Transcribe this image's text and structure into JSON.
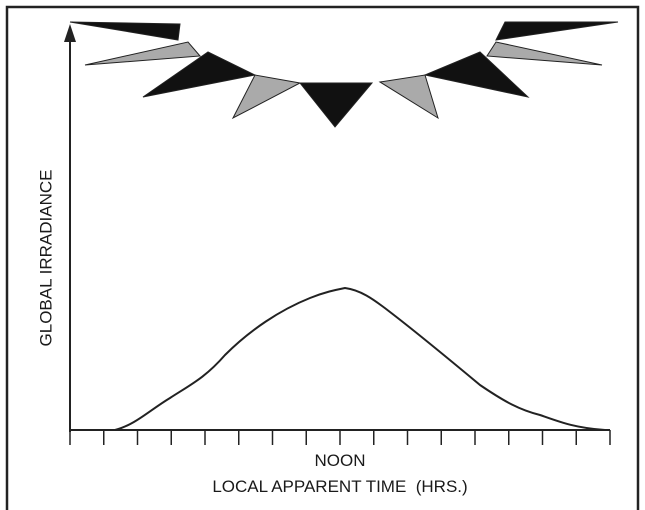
{
  "y_axis_label": "GLOBAL IRRADIANCE",
  "x_axis_label": {
    "noon": "NOON",
    "title": "LOCAL APPARENT TIME  (HRS.)"
  }
}
